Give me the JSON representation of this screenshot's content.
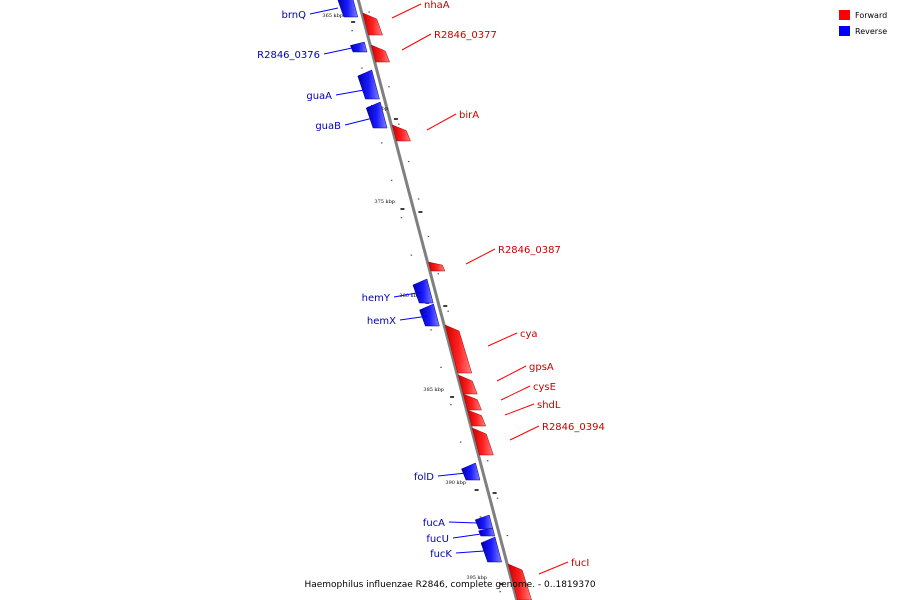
{
  "caption": "Haemophilus influenzae R2846, complete genome. - 0..1819370",
  "legend": {
    "forward_label": "Forward",
    "reverse_label": "Reverse",
    "forward_color": "#ff0000",
    "reverse_color": "#0000ff"
  },
  "colors": {
    "forward": "#ff0000",
    "reverse": "#0000ff",
    "backbone": "#808080",
    "label_forward": "#cc0000",
    "label_reverse": "#0000bb"
  },
  "tick_labels": [
    "365 kbp",
    "370 kbp",
    "375 kbp",
    "380 kbp",
    "385 kbp",
    "390 kbp",
    "395 kbp"
  ],
  "genes": [
    {
      "name": "brnQ",
      "strand": "reverse"
    },
    {
      "name": "nhaA",
      "strand": "forward"
    },
    {
      "name": "R2846_0377",
      "strand": "forward"
    },
    {
      "name": "R2846_0376",
      "strand": "reverse"
    },
    {
      "name": "guaA",
      "strand": "reverse"
    },
    {
      "name": "guaB",
      "strand": "reverse"
    },
    {
      "name": "birA",
      "strand": "forward"
    },
    {
      "name": "R2846_0387",
      "strand": "forward"
    },
    {
      "name": "hemY",
      "strand": "reverse"
    },
    {
      "name": "hemX",
      "strand": "reverse"
    },
    {
      "name": "cya",
      "strand": "forward"
    },
    {
      "name": "gpsA",
      "strand": "forward"
    },
    {
      "name": "cysE",
      "strand": "forward"
    },
    {
      "name": "shdL",
      "strand": "forward"
    },
    {
      "name": "R2846_0394",
      "strand": "forward"
    },
    {
      "name": "folD",
      "strand": "reverse"
    },
    {
      "name": "fucA",
      "strand": "reverse"
    },
    {
      "name": "fucU",
      "strand": "reverse"
    },
    {
      "name": "fucK",
      "strand": "reverse"
    },
    {
      "name": "fucI",
      "strand": "forward"
    }
  ]
}
